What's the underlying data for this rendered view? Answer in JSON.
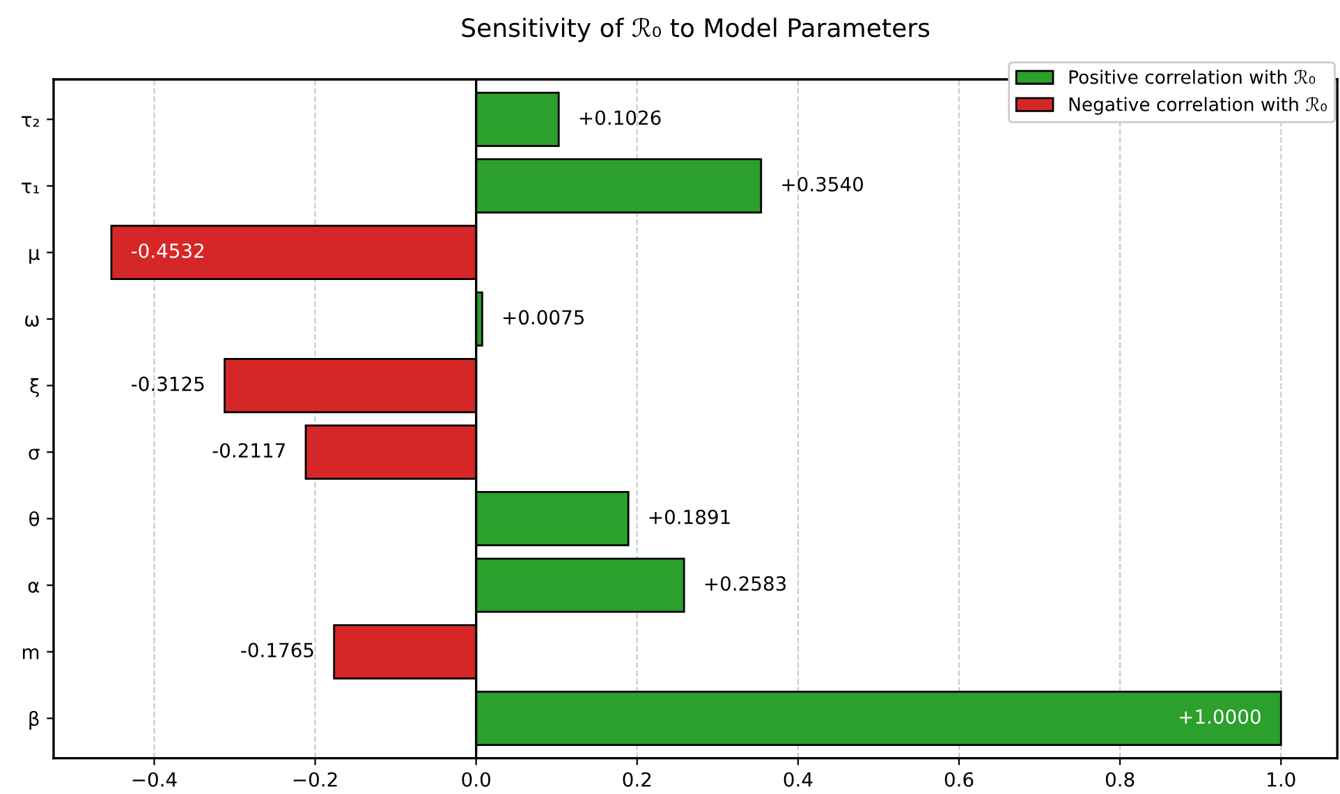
{
  "chart_data": {
    "type": "bar",
    "orientation": "horizontal",
    "title": "Sensitivity of ℛ₀ to Model Parameters",
    "categories": [
      "τ₂",
      "τ₁",
      "μ",
      "ω",
      "ξ",
      "σ",
      "θ",
      "α",
      "m",
      "β"
    ],
    "series": [
      {
        "name": "Positive correlation with ℛ₀",
        "color": "#2ca02c",
        "values": [
          0.1026,
          0.354,
          null,
          0.0075,
          null,
          null,
          0.1891,
          0.2583,
          null,
          1.0
        ],
        "value_labels": [
          "+0.1026",
          "+0.3540",
          null,
          "+0.0075",
          null,
          null,
          "+0.1891",
          "+0.2583",
          null,
          "+1.0000"
        ]
      },
      {
        "name": "Negative correlation with ℛ₀",
        "color": "#d62728",
        "values": [
          null,
          null,
          -0.4532,
          null,
          -0.3125,
          -0.2117,
          null,
          null,
          -0.1765,
          null
        ],
        "value_labels": [
          null,
          null,
          "-0.4532",
          null,
          "-0.3125",
          "-0.2117",
          null,
          null,
          "-0.1765",
          null
        ]
      }
    ],
    "xlim": [
      -0.525,
      1.07
    ],
    "xticks": [
      {
        "value": -0.4,
        "label": "−0.4"
      },
      {
        "value": -0.2,
        "label": "−0.2"
      },
      {
        "value": 0,
        "label": "0.0"
      },
      0.2,
      0.4,
      0.6,
      0.8,
      {
        "value": 1,
        "label": "1.0"
      }
    ],
    "ref_lines": [
      {
        "axis": "x",
        "value": 0,
        "color": "#000000",
        "line_style": "solid"
      }
    ],
    "grid": "x",
    "legend": "top right"
  }
}
